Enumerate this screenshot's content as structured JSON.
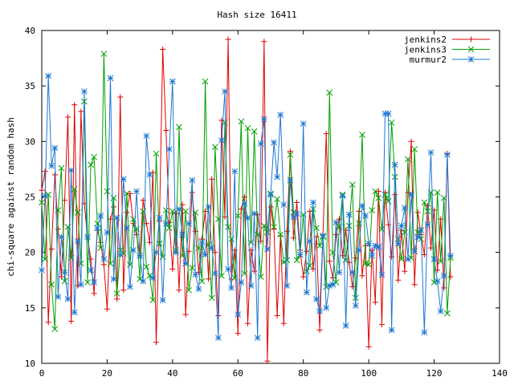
{
  "chart_data": {
    "type": "line",
    "title": "Hash size 16411",
    "xlabel": "",
    "ylabel": "chi-square against random hash",
    "xlim": [
      0,
      140
    ],
    "ylim": [
      10,
      40
    ],
    "xticks": [
      0,
      20,
      40,
      60,
      80,
      100,
      120,
      140
    ],
    "yticks": [
      10,
      15,
      20,
      25,
      30,
      35,
      40
    ],
    "grid": false,
    "legend_position": "top-right",
    "x": [
      0,
      1,
      2,
      3,
      4,
      5,
      6,
      7,
      8,
      9,
      10,
      11,
      12,
      13,
      14,
      15,
      16,
      17,
      18,
      19,
      20,
      21,
      22,
      23,
      24,
      25,
      26,
      27,
      28,
      29,
      30,
      31,
      32,
      33,
      34,
      35,
      36,
      37,
      38,
      39,
      40,
      41,
      42,
      43,
      44,
      45,
      46,
      47,
      48,
      49,
      50,
      51,
      52,
      53,
      54,
      55,
      56,
      57,
      58,
      59,
      60,
      61,
      62,
      63,
      64,
      65,
      66,
      67,
      68,
      69,
      70,
      71,
      72,
      73,
      74,
      75,
      76,
      77,
      78,
      79,
      80,
      81,
      82,
      83,
      84,
      85,
      86,
      87,
      88,
      89,
      90,
      91,
      92,
      93,
      94,
      95,
      96,
      97,
      98,
      99,
      100,
      101,
      102,
      103,
      104,
      105,
      106,
      107,
      108,
      109,
      110,
      111,
      112,
      113,
      114,
      115,
      116,
      117,
      118,
      119,
      120,
      121,
      122,
      123,
      124,
      125
    ],
    "series": [
      {
        "name": "jenkins2",
        "color": "#e00000",
        "marker": "plus",
        "values": [
          25.6,
          27.3,
          13.7,
          20.3,
          27.0,
          22.1,
          17.8,
          24.7,
          32.2,
          13.8,
          33.3,
          17.0,
          32.7,
          24.4,
          21.4,
          19.4,
          16.3,
          22.0,
          20.9,
          18.9,
          14.9,
          23.0,
          24.1,
          15.8,
          34.0,
          16.6,
          23.6,
          25.3,
          22.6,
          21.6,
          19.7,
          24.7,
          22.6,
          20.9,
          27.2,
          11.9,
          22.8,
          38.3,
          31.0,
          22.7,
          18.5,
          23.5,
          16.6,
          24.3,
          14.4,
          20.1,
          25.4,
          21.9,
          18.2,
          21.2,
          23.7,
          17.6,
          26.6,
          20.0,
          14.3,
          31.9,
          23.2,
          39.2,
          17.6,
          20.2,
          12.7,
          23.9,
          25.0,
          13.6,
          20.2,
          18.3,
          23.4,
          21.0,
          39.0,
          10.2,
          24.1,
          22.1,
          14.3,
          21.5,
          13.6,
          21.9,
          29.1,
          21.3,
          24.5,
          20.2,
          17.8,
          20.1,
          23.7,
          18.5,
          21.4,
          13.0,
          21.6,
          30.7,
          19.2,
          17.7,
          21.6,
          23.0,
          19.7,
          22.0,
          19.1,
          16.9,
          19.5,
          23.7,
          17.9,
          20.6,
          11.5,
          20.2,
          15.5,
          25.5,
          13.5,
          25.4,
          22.5,
          19.6,
          25.2,
          17.5,
          22.0,
          18.3,
          25.4,
          30.0,
          17.1,
          23.6,
          21.6,
          19.8,
          24.2,
          20.4,
          23.8,
          18.4,
          23.0,
          16.8,
          28.9,
          17.8
        ]
      },
      {
        "name": "jenkins3",
        "color": "#00a000",
        "marker": "cross",
        "values": [
          24.5,
          19.4,
          25.2,
          17.1,
          13.1,
          23.8,
          27.6,
          17.4,
          22.3,
          19.5,
          25.7,
          23.6,
          19.0,
          33.6,
          17.3,
          27.9,
          28.6,
          22.6,
          20.4,
          37.9,
          25.5,
          19.0,
          24.9,
          16.3,
          20.2,
          19.9,
          25.3,
          18.9,
          23.0,
          22.1,
          17.6,
          23.7,
          18.7,
          17.9,
          15.7,
          28.9,
          20.8,
          19.6,
          23.8,
          22.2,
          23.7,
          20.2,
          31.3,
          19.7,
          23.7,
          16.6,
          18.6,
          23.6,
          20.4,
          17.4,
          35.4,
          20.7,
          15.9,
          29.5,
          23.0,
          17.9,
          31.7,
          22.3,
          21.2,
          17.7,
          23.3,
          31.8,
          18.1,
          31.2,
          20.9,
          30.9,
          21.6,
          17.8,
          22.4,
          21.8,
          25.3,
          22.3,
          24.8,
          21.6,
          19.1,
          19.3,
          28.8,
          23.6,
          19.3,
          19.8,
          23.4,
          18.3,
          18.8,
          23.9,
          22.2,
          20.6,
          21.4,
          16.9,
          34.4,
          20.0,
          17.3,
          22.3,
          25.2,
          19.3,
          22.4,
          26.1,
          15.9,
          22.6,
          30.6,
          19.0,
          18.9,
          23.8,
          25.5,
          24.9,
          22.1,
          25.2,
          24.6,
          31.7,
          26.8,
          21.2,
          19.4,
          21.8,
          28.4,
          19.5,
          29.3,
          21.8,
          21.2,
          24.5,
          23.7,
          25.4,
          17.3,
          25.4,
          19.2,
          24.9,
          14.5,
          19.5
        ]
      },
      {
        "name": "murmur2",
        "color": "#1e78d2",
        "marker": "star",
        "values": [
          18.4,
          25.1,
          35.9,
          27.8,
          29.4,
          16.0,
          21.4,
          18.2,
          15.8,
          27.4,
          14.6,
          21.0,
          17.1,
          34.5,
          21.4,
          18.4,
          17.3,
          22.2,
          23.3,
          19.4,
          21.8,
          35.7,
          17.6,
          23.1,
          19.8,
          26.6,
          22.2,
          16.9,
          20.2,
          25.5,
          19.7,
          17.4,
          30.5,
          27.0,
          17.7,
          20.0,
          23.1,
          15.7,
          22.6,
          29.3,
          35.4,
          20.0,
          23.9,
          21.6,
          19.0,
          22.6,
          26.5,
          18.0,
          16.7,
          20.9,
          19.8,
          24.1,
          20.4,
          18.1,
          12.3,
          30.1,
          34.5,
          18.5,
          16.8,
          27.3,
          14.4,
          17.3,
          24.4,
          23.1,
          17.0,
          23.5,
          12.3,
          29.8,
          32.0,
          20.3,
          25.2,
          29.9,
          26.8,
          32.4,
          24.3,
          17.0,
          26.5,
          23.2,
          23.5,
          19.8,
          31.6,
          16.4,
          21.0,
          24.5,
          15.8,
          14.7,
          21.5,
          15.0,
          17.0,
          17.1,
          22.7,
          18.2,
          25.1,
          13.4,
          23.4,
          18.2,
          15.2,
          20.2,
          24.2,
          23.3,
          20.8,
          19.7,
          20.6,
          20.5,
          18.0,
          32.5,
          32.5,
          13.0,
          27.9,
          20.8,
          22.4,
          24.0,
          19.4,
          25.2,
          20.1,
          21.4,
          22.0,
          12.8,
          22.5,
          29.0,
          19.4,
          17.4,
          14.7,
          17.9,
          28.8,
          19.7
        ]
      }
    ]
  }
}
